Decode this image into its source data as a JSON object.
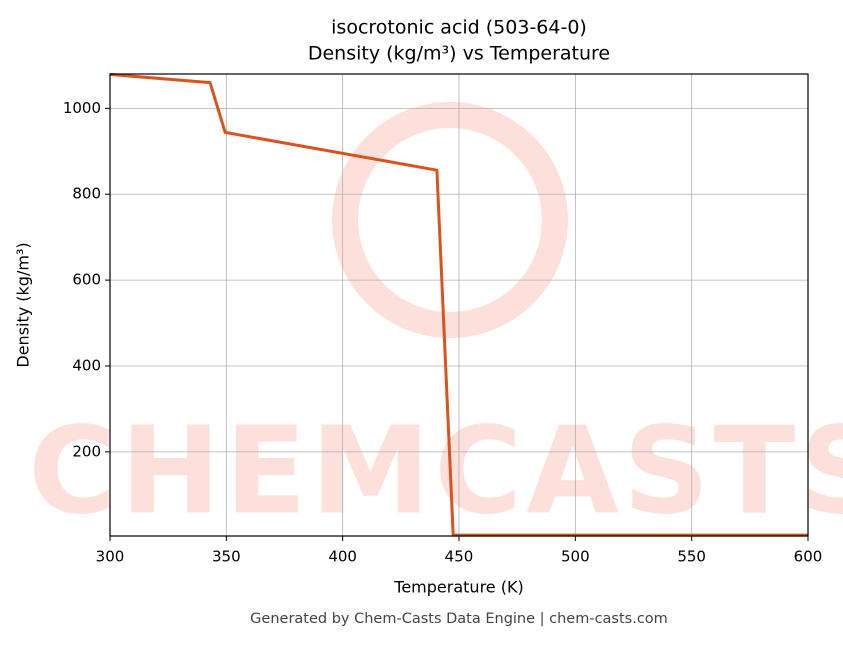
{
  "chart_data": {
    "type": "line",
    "title": "isocrotonic acid (503-64-0)",
    "subtitle": "Density (kg/m³) vs Temperature",
    "x_label": "Temperature (K)",
    "y_label": "Density (kg/m³)",
    "footer": "Generated by Chem-Casts Data Engine | chem-casts.com",
    "watermark": "CHEMCASTS",
    "x": [
      300,
      343,
      349.5,
      440.5,
      447.5,
      600
    ],
    "series": [
      {
        "name": "Density",
        "color": "#d9531e",
        "values": [
          1079,
          1060,
          944,
          856,
          6,
          6
        ]
      }
    ],
    "xlim": [
      300,
      600
    ],
    "xticks": [
      300,
      350,
      400,
      450,
      500,
      550,
      600
    ],
    "ylim": [
      4,
      1080
    ],
    "yticks": [
      200,
      400,
      600,
      800,
      1000
    ],
    "grid": true
  }
}
